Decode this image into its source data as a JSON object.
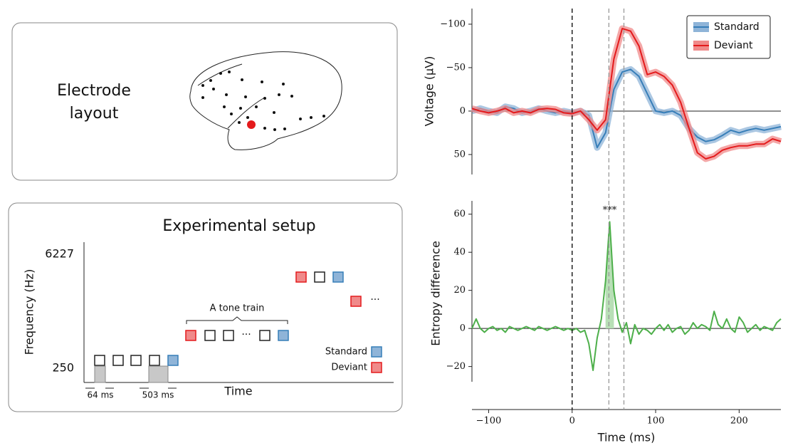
{
  "electrode_panel": {
    "title_line1": "Electrode",
    "title_line2": "layout"
  },
  "setup_panel": {
    "title": "Experimental setup",
    "y_label": "Frequency (Hz)",
    "y_high": "6227",
    "y_low": "250",
    "x_label": "Time",
    "short_gap": "64 ms",
    "long_gap": "503 ms",
    "train_label": "A tone train",
    "ellipsis": "···",
    "legend_standard": "Standard",
    "legend_deviant": "Deviant"
  },
  "chart_data": [
    {
      "type": "line",
      "y_label": "Voltage (μV)",
      "y_inverted": true,
      "zero_line": true,
      "legend": "upper right",
      "x": [
        -120,
        -110,
        -100,
        -90,
        -80,
        -70,
        -60,
        -50,
        -40,
        -30,
        -20,
        -10,
        0,
        10,
        20,
        30,
        40,
        50,
        60,
        70,
        80,
        90,
        100,
        110,
        120,
        130,
        140,
        150,
        160,
        170,
        180,
        190,
        200,
        210,
        220,
        230,
        240,
        250
      ],
      "series": [
        {
          "name": "Standard",
          "color": "#377eb8",
          "band_color": "#8fb4d8",
          "values": [
            0,
            -3,
            0,
            2,
            -5,
            -3,
            2,
            0,
            -3,
            0,
            2,
            0,
            2,
            0,
            5,
            42,
            25,
            -25,
            -45,
            -48,
            -40,
            -20,
            0,
            2,
            0,
            5,
            20,
            30,
            35,
            33,
            28,
            22,
            25,
            22,
            20,
            22,
            20,
            18
          ]
        },
        {
          "name": "Deviant",
          "color": "#e41a1c",
          "band_color": "#f08a8a",
          "values": [
            -3,
            0,
            2,
            0,
            -3,
            2,
            0,
            2,
            -2,
            -3,
            -2,
            2,
            3,
            0,
            10,
            22,
            10,
            -60,
            -95,
            -92,
            -75,
            -42,
            -45,
            -40,
            -30,
            -10,
            20,
            48,
            55,
            52,
            45,
            42,
            40,
            40,
            38,
            38,
            32,
            35
          ]
        }
      ],
      "xlim": [
        -120,
        250
      ],
      "ylim": [
        -118,
        73
      ],
      "yticks": [
        {
          "value": -100,
          "label": "−100"
        },
        {
          "value": -50,
          "label": "−50"
        },
        0,
        50
      ],
      "vlines": [
        {
          "value": 0,
          "color": "#000000"
        },
        {
          "value": 44,
          "color": "#999999"
        },
        {
          "value": 62,
          "color": "#999999"
        }
      ]
    },
    {
      "type": "line",
      "y_label": "Entropy difference",
      "x_label": "Time (ms)",
      "zero_line": true,
      "x": [
        -120,
        -115,
        -110,
        -105,
        -100,
        -95,
        -90,
        -85,
        -80,
        -75,
        -70,
        -65,
        -60,
        -55,
        -50,
        -45,
        -40,
        -35,
        -30,
        -25,
        -20,
        -15,
        -10,
        -5,
        0,
        5,
        10,
        15,
        20,
        25,
        30,
        35,
        40,
        45,
        50,
        55,
        60,
        65,
        70,
        75,
        80,
        85,
        90,
        95,
        100,
        105,
        110,
        115,
        120,
        125,
        130,
        135,
        140,
        145,
        150,
        155,
        160,
        165,
        170,
        175,
        180,
        185,
        190,
        195,
        200,
        205,
        210,
        215,
        220,
        225,
        230,
        235,
        240,
        245,
        250
      ],
      "series": [
        {
          "name": "Entropy difference",
          "color": "#4daf4a",
          "values": [
            0,
            5,
            0,
            -2,
            0,
            1,
            -1,
            0,
            -2,
            1,
            0,
            -1,
            0,
            1,
            0,
            -1,
            1,
            0,
            -1,
            0,
            1,
            0,
            -1,
            0,
            -1,
            0,
            -2,
            -1,
            -8,
            -22,
            -5,
            5,
            25,
            56,
            20,
            5,
            -2,
            3,
            -8,
            2,
            -3,
            0,
            -1,
            -3,
            0,
            2,
            -1,
            2,
            -2,
            0,
            1,
            -3,
            -1,
            3,
            0,
            2,
            1,
            -1,
            9,
            2,
            0,
            5,
            0,
            -2,
            6,
            3,
            -2,
            0,
            2,
            -1,
            1,
            0,
            -1,
            3,
            5
          ]
        }
      ],
      "shade_range": [
        38,
        52
      ],
      "shade_color": "#b8dfb6",
      "annotation": {
        "text": "***",
        "x": 45,
        "y": 62
      },
      "xlim": [
        -120,
        250
      ],
      "ylim": [
        -28,
        67
      ],
      "xticks": [
        {
          "value": -100,
          "label": "−100"
        },
        0,
        100,
        200
      ],
      "yticks": [
        60,
        40,
        20,
        0,
        {
          "value": -20,
          "label": "−20"
        }
      ]
    }
  ]
}
